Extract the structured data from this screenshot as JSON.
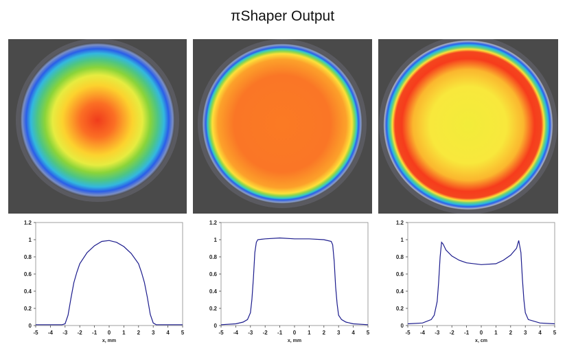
{
  "title": "πShaper Output",
  "colors": {
    "background": "#4a4a4a",
    "curve": "#1a1a8c",
    "beam_stops": [
      "#ff4a16",
      "#ffcf2a",
      "#fff04a",
      "#7ad234",
      "#35c78a",
      "#2ab7e0",
      "#2a5ee8",
      "#6a84c6",
      "#a8b0c8"
    ]
  },
  "images": [
    {
      "name": "gaussian-beam",
      "profile": "gaussian",
      "center_color": "#f03c1c"
    },
    {
      "name": "flat-top-beam",
      "profile": "flat-top",
      "center_color": "#fb7a24"
    },
    {
      "name": "ring-beam",
      "profile": "inverse-gaussian",
      "center_color": "#f2ec3a"
    }
  ],
  "chart_data": [
    {
      "type": "line",
      "xlabel": "x, mm",
      "ylabel": "",
      "xlim": [
        -5,
        5
      ],
      "ylim": [
        0,
        1.2
      ],
      "xticks": [
        "-5",
        "-4",
        "-3",
        "-2",
        "-1",
        "0",
        "1",
        "2",
        "3",
        "4",
        "5"
      ],
      "yticks": [
        "0",
        "0.2",
        "0.4",
        "0.6",
        "0.8",
        "1",
        "1.2"
      ],
      "x": [
        -5,
        -4,
        -3.2,
        -3,
        -2.8,
        -2.6,
        -2.4,
        -2.2,
        -2,
        -1.5,
        -1,
        -0.5,
        0,
        0.5,
        1,
        1.5,
        2,
        2.2,
        2.4,
        2.6,
        2.8,
        3,
        3.2,
        4,
        5
      ],
      "y": [
        0.01,
        0.01,
        0.01,
        0.02,
        0.12,
        0.32,
        0.5,
        0.62,
        0.72,
        0.85,
        0.93,
        0.98,
        0.99,
        0.97,
        0.92,
        0.84,
        0.72,
        0.62,
        0.5,
        0.33,
        0.13,
        0.03,
        0.01,
        0.01,
        0.01
      ]
    },
    {
      "type": "line",
      "xlabel": "x, mm",
      "ylabel": "",
      "xlim": [
        -5,
        5
      ],
      "ylim": [
        0,
        1.2
      ],
      "xticks": [
        "-5",
        "-4",
        "-3",
        "-2",
        "-1",
        "0",
        "1",
        "2",
        "3",
        "4",
        "5"
      ],
      "yticks": [
        "0",
        "0.2",
        "0.4",
        "0.6",
        "0.8",
        "1",
        "1.2"
      ],
      "x": [
        -5,
        -4,
        -3.5,
        -3.2,
        -3,
        -2.9,
        -2.8,
        -2.7,
        -2.6,
        -2.5,
        -2,
        -1,
        0,
        1,
        2,
        2.5,
        2.6,
        2.7,
        2.8,
        2.9,
        3,
        3.2,
        3.5,
        4,
        5
      ],
      "y": [
        0.01,
        0.02,
        0.04,
        0.07,
        0.15,
        0.3,
        0.55,
        0.85,
        0.97,
        1.0,
        1.01,
        1.02,
        1.01,
        1.01,
        1.0,
        0.98,
        0.94,
        0.75,
        0.45,
        0.25,
        0.12,
        0.07,
        0.04,
        0.02,
        0.01
      ]
    },
    {
      "type": "line",
      "xlabel": "x, cm",
      "ylabel": "",
      "xlim": [
        -5,
        5
      ],
      "ylim": [
        0,
        1.2
      ],
      "xticks": [
        "-5",
        "-4",
        "-3",
        "-2",
        "-1",
        "0",
        "1",
        "2",
        "3",
        "4",
        "5"
      ],
      "yticks": [
        "0",
        "0.2",
        "0.4",
        "0.6",
        "0.8",
        "1",
        "1.2"
      ],
      "x": [
        -5,
        -4,
        -3.4,
        -3.2,
        -3,
        -2.9,
        -2.8,
        -2.7,
        -2.6,
        -2.4,
        -2,
        -1.5,
        -1,
        0,
        1,
        1.5,
        2,
        2.4,
        2.55,
        2.7,
        2.8,
        2.9,
        3,
        3.2,
        4,
        5
      ],
      "y": [
        0.02,
        0.03,
        0.07,
        0.12,
        0.28,
        0.5,
        0.8,
        0.97,
        0.95,
        0.88,
        0.81,
        0.76,
        0.73,
        0.71,
        0.72,
        0.76,
        0.82,
        0.9,
        0.99,
        0.85,
        0.55,
        0.3,
        0.15,
        0.07,
        0.03,
        0.02
      ]
    }
  ]
}
